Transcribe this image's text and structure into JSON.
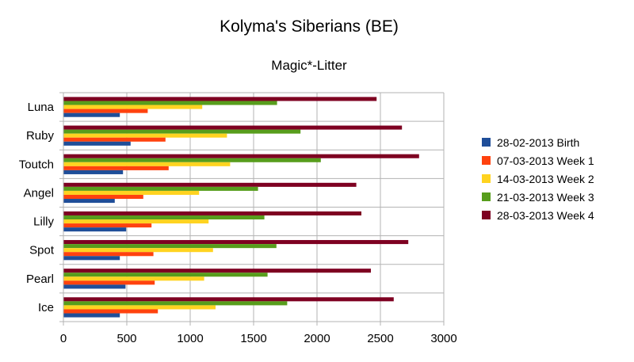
{
  "chart_data": {
    "type": "bar",
    "orientation": "horizontal",
    "title": "Kolyma's Siberians (BE)",
    "subtitle": "Magic*-Litter",
    "xlabel": "",
    "ylabel": "",
    "xlim": [
      0,
      3000
    ],
    "xticks": [
      0,
      500,
      1000,
      1500,
      2000,
      2500,
      3000
    ],
    "grid": true,
    "legend_position": "right",
    "categories": [
      "Luna",
      "Ruby",
      "Toutch",
      "Angel",
      "Lilly",
      "Spot",
      "Pearl",
      "Ice"
    ],
    "series": [
      {
        "name": "28-02-2013 Birth",
        "color": "#1f4e99",
        "values": [
          445,
          530,
          470,
          405,
          495,
          445,
          490,
          445
        ]
      },
      {
        "name": "07-03-2013 Week 1",
        "color": "#ff420e",
        "values": [
          665,
          805,
          830,
          630,
          695,
          710,
          720,
          745
        ]
      },
      {
        "name": "14-03-2013 Week 2",
        "color": "#ffd320",
        "values": [
          1095,
          1290,
          1315,
          1070,
          1145,
          1180,
          1110,
          1200
        ]
      },
      {
        "name": "21-03-2013 Week 3",
        "color": "#579d1c",
        "values": [
          1685,
          1870,
          2030,
          1535,
          1585,
          1680,
          1610,
          1765
        ]
      },
      {
        "name": "28-03-2013 Week 4",
        "color": "#7e0021",
        "values": [
          2470,
          2670,
          2805,
          2310,
          2350,
          2720,
          2425,
          2605
        ]
      }
    ]
  }
}
